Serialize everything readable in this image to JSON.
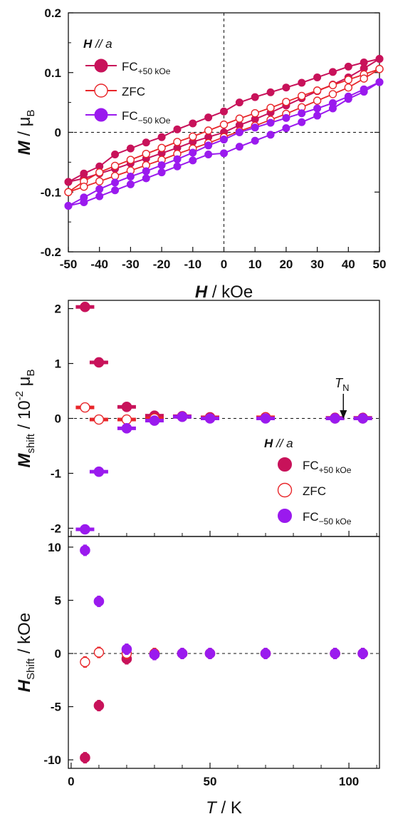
{
  "colors": {
    "fc_plus": "#c8125a",
    "zfc": "#e8262a",
    "fc_minus": "#9a1aee",
    "axis": "#111111"
  },
  "chart_data": [
    {
      "type": "line",
      "panel": "top",
      "xlabel": "H / kOe",
      "xlabel_var": "H",
      "xlabel_unit": " / kOe",
      "ylabel": "M / μB",
      "ylabel_var": "M",
      "ylabel_unit": " / μ",
      "ylabel_sub": "B",
      "xlim": [
        -50,
        50
      ],
      "ylim": [
        -0.2,
        0.2
      ],
      "xticks": [
        -50,
        -40,
        -30,
        -20,
        -10,
        0,
        10,
        20,
        30,
        40,
        50
      ],
      "yticks": [
        -0.2,
        -0.1,
        0,
        0.1,
        0.2
      ],
      "ytick_labels": [
        "-0.2",
        "-0.1",
        "0",
        "0.1",
        "0.2"
      ],
      "legend_title": "H // a",
      "legend_title_var": "H",
      "legend_title_rest": " // a",
      "legend_position": "top-left",
      "dashed_zero_lines": true,
      "series": [
        {
          "name": "FC+50 kOe",
          "name_main": "FC",
          "name_sub": "+50 kOe",
          "marker": "filled",
          "x_down": [
            50,
            45,
            40,
            35,
            30,
            25,
            20,
            15,
            10,
            5,
            0,
            -5,
            -10,
            -15,
            -20,
            -25,
            -30,
            -35,
            -40,
            -45,
            -50
          ],
          "y_down": [
            0.123,
            0.117,
            0.11,
            0.101,
            0.092,
            0.083,
            0.075,
            0.067,
            0.059,
            0.05,
            0.035,
            0.025,
            0.015,
            0.005,
            -0.008,
            -0.017,
            -0.027,
            -0.037,
            -0.057,
            -0.069,
            -0.083
          ],
          "x_up": [
            -50,
            -45,
            -40,
            -35,
            -30,
            -25,
            -20,
            -15,
            -10,
            -5,
            0,
            5,
            10,
            15,
            20,
            25,
            30,
            35,
            40,
            45,
            50
          ],
          "y_up": [
            -0.083,
            -0.077,
            -0.069,
            -0.061,
            -0.052,
            -0.044,
            -0.035,
            -0.026,
            -0.016,
            -0.008,
            0.0,
            0.012,
            0.022,
            0.033,
            0.045,
            0.057,
            0.069,
            0.08,
            0.092,
            0.107,
            0.123
          ]
        },
        {
          "name": "ZFC",
          "name_main": "ZFC",
          "name_sub": "",
          "marker": "open",
          "x_down": [
            50,
            45,
            40,
            35,
            30,
            25,
            20,
            15,
            10,
            5,
            0,
            -5,
            -10,
            -15,
            -20,
            -25,
            -30,
            -35,
            -40,
            -45,
            -50
          ],
          "y_down": [
            0.106,
            0.097,
            0.088,
            0.079,
            0.07,
            0.061,
            0.051,
            0.041,
            0.032,
            0.023,
            0.013,
            0.003,
            -0.007,
            -0.016,
            -0.026,
            -0.036,
            -0.046,
            -0.056,
            -0.067,
            -0.082,
            -0.1
          ],
          "x_up": [
            -50,
            -45,
            -40,
            -35,
            -30,
            -25,
            -20,
            -15,
            -10,
            -5,
            0,
            5,
            10,
            15,
            20,
            25,
            30,
            35,
            40,
            45,
            50
          ],
          "y_up": [
            -0.1,
            -0.091,
            -0.082,
            -0.073,
            -0.064,
            -0.055,
            -0.046,
            -0.036,
            -0.027,
            -0.018,
            -0.008,
            0.002,
            0.011,
            0.021,
            0.031,
            0.042,
            0.053,
            0.064,
            0.075,
            0.09,
            0.106
          ]
        },
        {
          "name": "FC−50 kOe",
          "name_main": "FC",
          "name_sub": "−50 kOe",
          "marker": "filled",
          "x_down": [
            50,
            45,
            40,
            35,
            30,
            25,
            20,
            15,
            10,
            5,
            0,
            -5,
            -10,
            -15,
            -20,
            -25,
            -30,
            -35,
            -40,
            -45,
            -50
          ],
          "y_down": [
            0.084,
            0.072,
            0.06,
            0.049,
            0.04,
            0.032,
            0.024,
            0.016,
            0.008,
            0.0,
            -0.012,
            -0.022,
            -0.034,
            -0.045,
            -0.055,
            -0.065,
            -0.074,
            -0.084,
            -0.095,
            -0.109,
            -0.123
          ],
          "x_up": [
            -50,
            -45,
            -40,
            -35,
            -30,
            -25,
            -20,
            -15,
            -10,
            -5,
            0,
            5,
            10,
            15,
            20,
            25,
            30,
            35,
            40,
            45,
            50
          ],
          "y_up": [
            -0.123,
            -0.117,
            -0.107,
            -0.097,
            -0.087,
            -0.077,
            -0.067,
            -0.057,
            -0.047,
            -0.037,
            -0.035,
            -0.024,
            -0.014,
            -0.004,
            0.007,
            0.017,
            0.028,
            0.04,
            0.056,
            0.068,
            0.084
          ]
        }
      ]
    },
    {
      "type": "scatter",
      "panel": "middle",
      "ylabel": "Mshift / 10^-2 μB",
      "ylabel_var": "M",
      "ylabel_sub": "shift",
      "ylabel_unit": " / 10",
      "ylabel_sup": "-2",
      "ylabel_unit2": " μ",
      "ylabel_sub2": "B",
      "xlim": [
        -1,
        111
      ],
      "ylim": [
        -2.15,
        2.15
      ],
      "yticks": [
        -2,
        -1,
        0,
        1,
        2
      ],
      "xticks": [
        0,
        50,
        100
      ],
      "xminor": [
        10,
        20,
        30,
        40,
        60,
        70,
        80,
        90,
        110
      ],
      "legend_title": "H // a",
      "legend_title_var": "H",
      "legend_title_rest": " // a",
      "legend_position": "bottom-right",
      "annotation": {
        "var": "T",
        "sub": "N",
        "x": 98,
        "y": 0
      },
      "dashed_zero_line": true,
      "series": [
        {
          "name": "FC+50 kOe",
          "name_main": "FC",
          "name_sub": "+50 kOe",
          "marker": "filled",
          "x": [
            5,
            10,
            20,
            30,
            40,
            50,
            70,
            95,
            105
          ],
          "y": [
            2.03,
            1.02,
            0.21,
            0.05,
            0.04,
            0.02,
            0.02,
            0.01,
            0.01
          ]
        },
        {
          "name": "ZFC",
          "name_main": "ZFC",
          "name_sub": "",
          "marker": "open",
          "x": [
            5,
            10,
            20,
            30,
            40,
            50,
            70,
            95,
            105
          ],
          "y": [
            0.2,
            -0.02,
            -0.02,
            0.0,
            0.03,
            0.01,
            0.02,
            0.0,
            0.0
          ]
        },
        {
          "name": "FC−50 kOe",
          "name_main": "FC",
          "name_sub": "−50 kOe",
          "marker": "filled",
          "x": [
            5,
            10,
            20,
            30,
            40,
            50,
            70,
            95,
            105
          ],
          "y": [
            -2.02,
            -0.97,
            -0.18,
            -0.04,
            0.03,
            0.0,
            0.0,
            0.0,
            0.0
          ]
        }
      ]
    },
    {
      "type": "scatter",
      "panel": "bottom",
      "xlabel": "T / K",
      "xlabel_var": "T",
      "xlabel_unit": " / K",
      "ylabel": "HShift / kOe",
      "ylabel_var": "H",
      "ylabel_sub": "Shift",
      "ylabel_unit": " / kOe",
      "xlim": [
        -1,
        111
      ],
      "ylim": [
        -10.8,
        11
      ],
      "yticks": [
        -10,
        -5,
        0,
        5,
        10
      ],
      "xticks": [
        0,
        50,
        100
      ],
      "xminor": [
        10,
        20,
        30,
        40,
        60,
        70,
        80,
        90,
        110
      ],
      "dashed_zero_line": true,
      "series": [
        {
          "name": "FC+50 kOe",
          "marker": "filled",
          "x": [
            5,
            10,
            20,
            30,
            40,
            50,
            70,
            95,
            105
          ],
          "y": [
            -9.8,
            -4.9,
            -0.5,
            -0.1,
            0.0,
            0.0,
            0.0,
            0.0,
            0.0
          ]
        },
        {
          "name": "ZFC",
          "marker": "open",
          "x": [
            5,
            10,
            20,
            30,
            40,
            50,
            70,
            95,
            105
          ],
          "y": [
            -0.8,
            0.1,
            0.0,
            0.0,
            0.0,
            0.0,
            0.0,
            0.0,
            0.0
          ]
        },
        {
          "name": "FC−50 kOe",
          "marker": "filled",
          "x": [
            5,
            10,
            20,
            30,
            40,
            50,
            70,
            95,
            105
          ],
          "y": [
            9.7,
            4.9,
            0.4,
            -0.1,
            0.0,
            0.0,
            0.0,
            0.0,
            0.0
          ]
        }
      ]
    }
  ]
}
